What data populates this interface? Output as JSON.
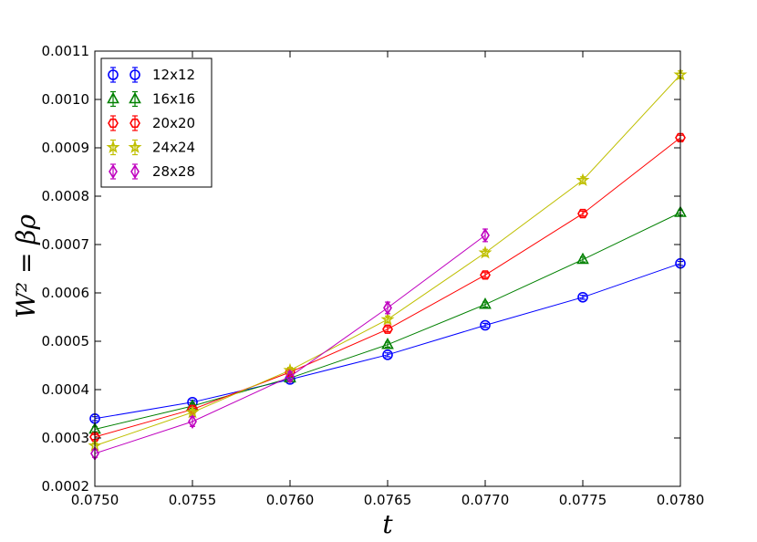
{
  "chart_data": {
    "type": "line",
    "xlabel": "t",
    "ylabel": "W² = βρ",
    "xlim": [
      0.075,
      0.078
    ],
    "ylim": [
      0.0002,
      0.0011
    ],
    "x_ticks": [
      "0.0750",
      "0.0755",
      "0.0760",
      "0.0765",
      "0.0770",
      "0.0775",
      "0.0780"
    ],
    "y_ticks": [
      "0.0002",
      "0.0003",
      "0.0004",
      "0.0005",
      "0.0006",
      "0.0007",
      "0.0008",
      "0.0009",
      "0.0010",
      "0.0011"
    ],
    "legend_position": "top-left",
    "grid": false,
    "series": [
      {
        "name": "12x12",
        "color": "#0000ff",
        "marker": "circle",
        "x": [
          0.075,
          0.0755,
          0.076,
          0.0765,
          0.077,
          0.0775,
          0.078
        ],
        "y": [
          0.00034,
          0.000374,
          0.000421,
          0.000472,
          0.000533,
          0.000591,
          0.000661
        ],
        "err": [
          4e-06,
          4e-06,
          4e-06,
          4e-06,
          4e-06,
          4e-06,
          4e-06
        ]
      },
      {
        "name": "16x16",
        "color": "#008000",
        "marker": "triangle",
        "x": [
          0.075,
          0.0755,
          0.076,
          0.0765,
          0.077,
          0.0775,
          0.078
        ],
        "y": [
          0.000318,
          0.000366,
          0.000424,
          0.000493,
          0.000576,
          0.000669,
          0.000766
        ],
        "err": [
          5e-06,
          5e-06,
          5e-06,
          5e-06,
          5e-06,
          5e-06,
          5e-06
        ]
      },
      {
        "name": "20x20",
        "color": "#ff0000",
        "marker": "hexagon",
        "x": [
          0.075,
          0.0755,
          0.076,
          0.0765,
          0.077,
          0.0775,
          0.078
        ],
        "y": [
          0.000302,
          0.000359,
          0.000436,
          0.000525,
          0.000637,
          0.000764,
          0.000921
        ],
        "err": [
          5e-06,
          5e-06,
          5e-06,
          5e-06,
          5e-06,
          5e-06,
          5e-06
        ]
      },
      {
        "name": "24x24",
        "color": "#bfbf00",
        "marker": "star",
        "x": [
          0.075,
          0.0755,
          0.076,
          0.0765,
          0.077,
          0.0775,
          0.078
        ],
        "y": [
          0.000284,
          0.000353,
          0.00044,
          0.000545,
          0.000683,
          0.000833,
          0.001051
        ],
        "err": [
          6e-06,
          6e-06,
          6e-06,
          7e-06,
          7e-06,
          7e-06,
          8e-06
        ]
      },
      {
        "name": "28x28",
        "color": "#bf00bf",
        "marker": "diamond",
        "x": [
          0.075,
          0.0755,
          0.076,
          0.0765,
          0.077
        ],
        "y": [
          0.000268,
          0.000334,
          0.000427,
          0.000569,
          0.000719
        ],
        "err": [
          8e-06,
          1e-05,
          1e-05,
          1.2e-05,
          1.3e-05
        ]
      }
    ]
  }
}
